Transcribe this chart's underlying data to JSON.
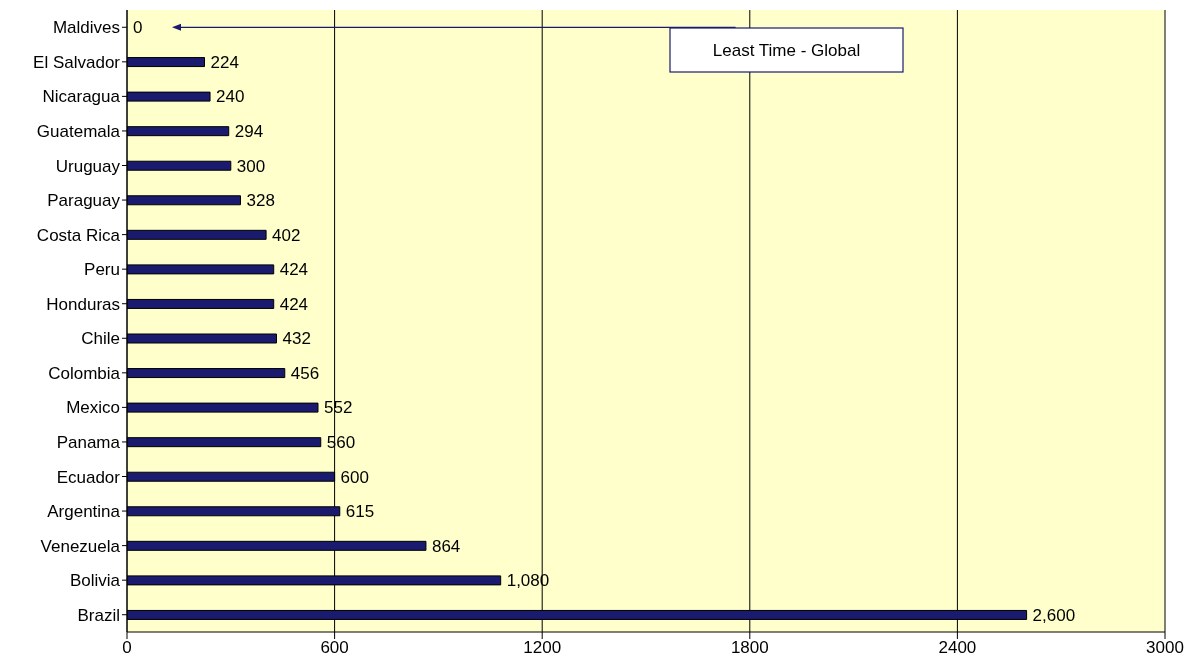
{
  "chart_data": {
    "type": "bar",
    "orientation": "horizontal",
    "categories": [
      "Maldives",
      "El Salvador",
      "Nicaragua",
      "Guatemala",
      "Uruguay",
      "Paraguay",
      "Costa Rica",
      "Peru",
      "Honduras",
      "Chile",
      "Colombia",
      "Mexico",
      "Panama",
      "Ecuador",
      "Argentina",
      "Venezuela",
      "Bolivia",
      "Brazil"
    ],
    "values": [
      0,
      224,
      240,
      294,
      300,
      328,
      402,
      424,
      424,
      432,
      456,
      552,
      560,
      600,
      615,
      864,
      1080,
      2600
    ],
    "value_labels": [
      "0",
      "224",
      "240",
      "294",
      "300",
      "328",
      "402",
      "424",
      "424",
      "432",
      "456",
      "552",
      "560",
      "600",
      "615",
      "864",
      "1,080",
      "2,600"
    ],
    "color": "#1a1a6e",
    "xlim": [
      0,
      3000
    ],
    "xticks": [
      0,
      600,
      1200,
      1800,
      2400,
      3000
    ],
    "grid": "x",
    "annotations": [
      "Least Time - Global"
    ]
  }
}
